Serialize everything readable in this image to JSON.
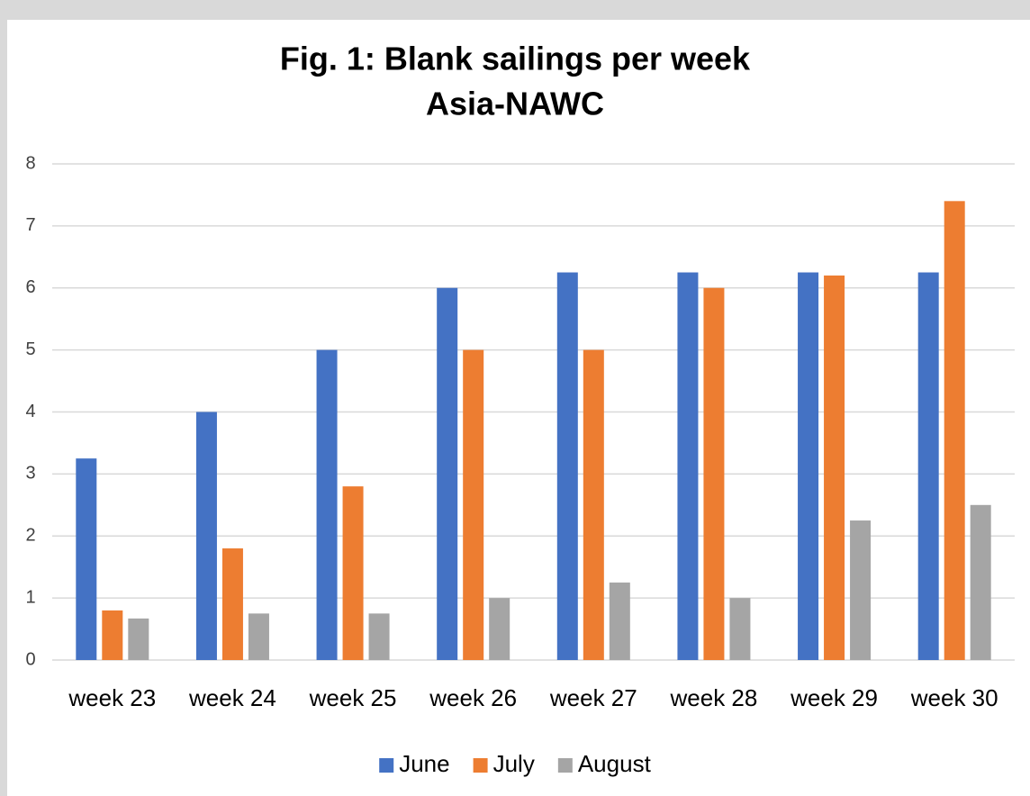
{
  "chart_data": {
    "type": "bar",
    "title": "Fig. 1: Blank sailings per week",
    "subtitle": "Asia-NAWC",
    "categories": [
      "week 23",
      "week 24",
      "week 25",
      "week 26",
      "week 27",
      "week 28",
      "week 29",
      "week 30"
    ],
    "series": [
      {
        "name": "June",
        "color": "#4472c4",
        "values": [
          3.25,
          4,
          5,
          6,
          6.25,
          6.25,
          6.25,
          6.25
        ]
      },
      {
        "name": "July",
        "color": "#ed7d31",
        "values": [
          0.8,
          1.8,
          2.8,
          5,
          5,
          6,
          6.2,
          7.4
        ]
      },
      {
        "name": "August",
        "color": "#a5a5a5",
        "values": [
          0.67,
          0.75,
          0.75,
          1,
          1.25,
          1,
          2.25,
          2.5
        ]
      }
    ],
    "ylim": [
      0,
      8
    ],
    "yticks": [
      0,
      1,
      2,
      3,
      4,
      5,
      6,
      7,
      8
    ],
    "grid": true,
    "legend": "bottom"
  }
}
